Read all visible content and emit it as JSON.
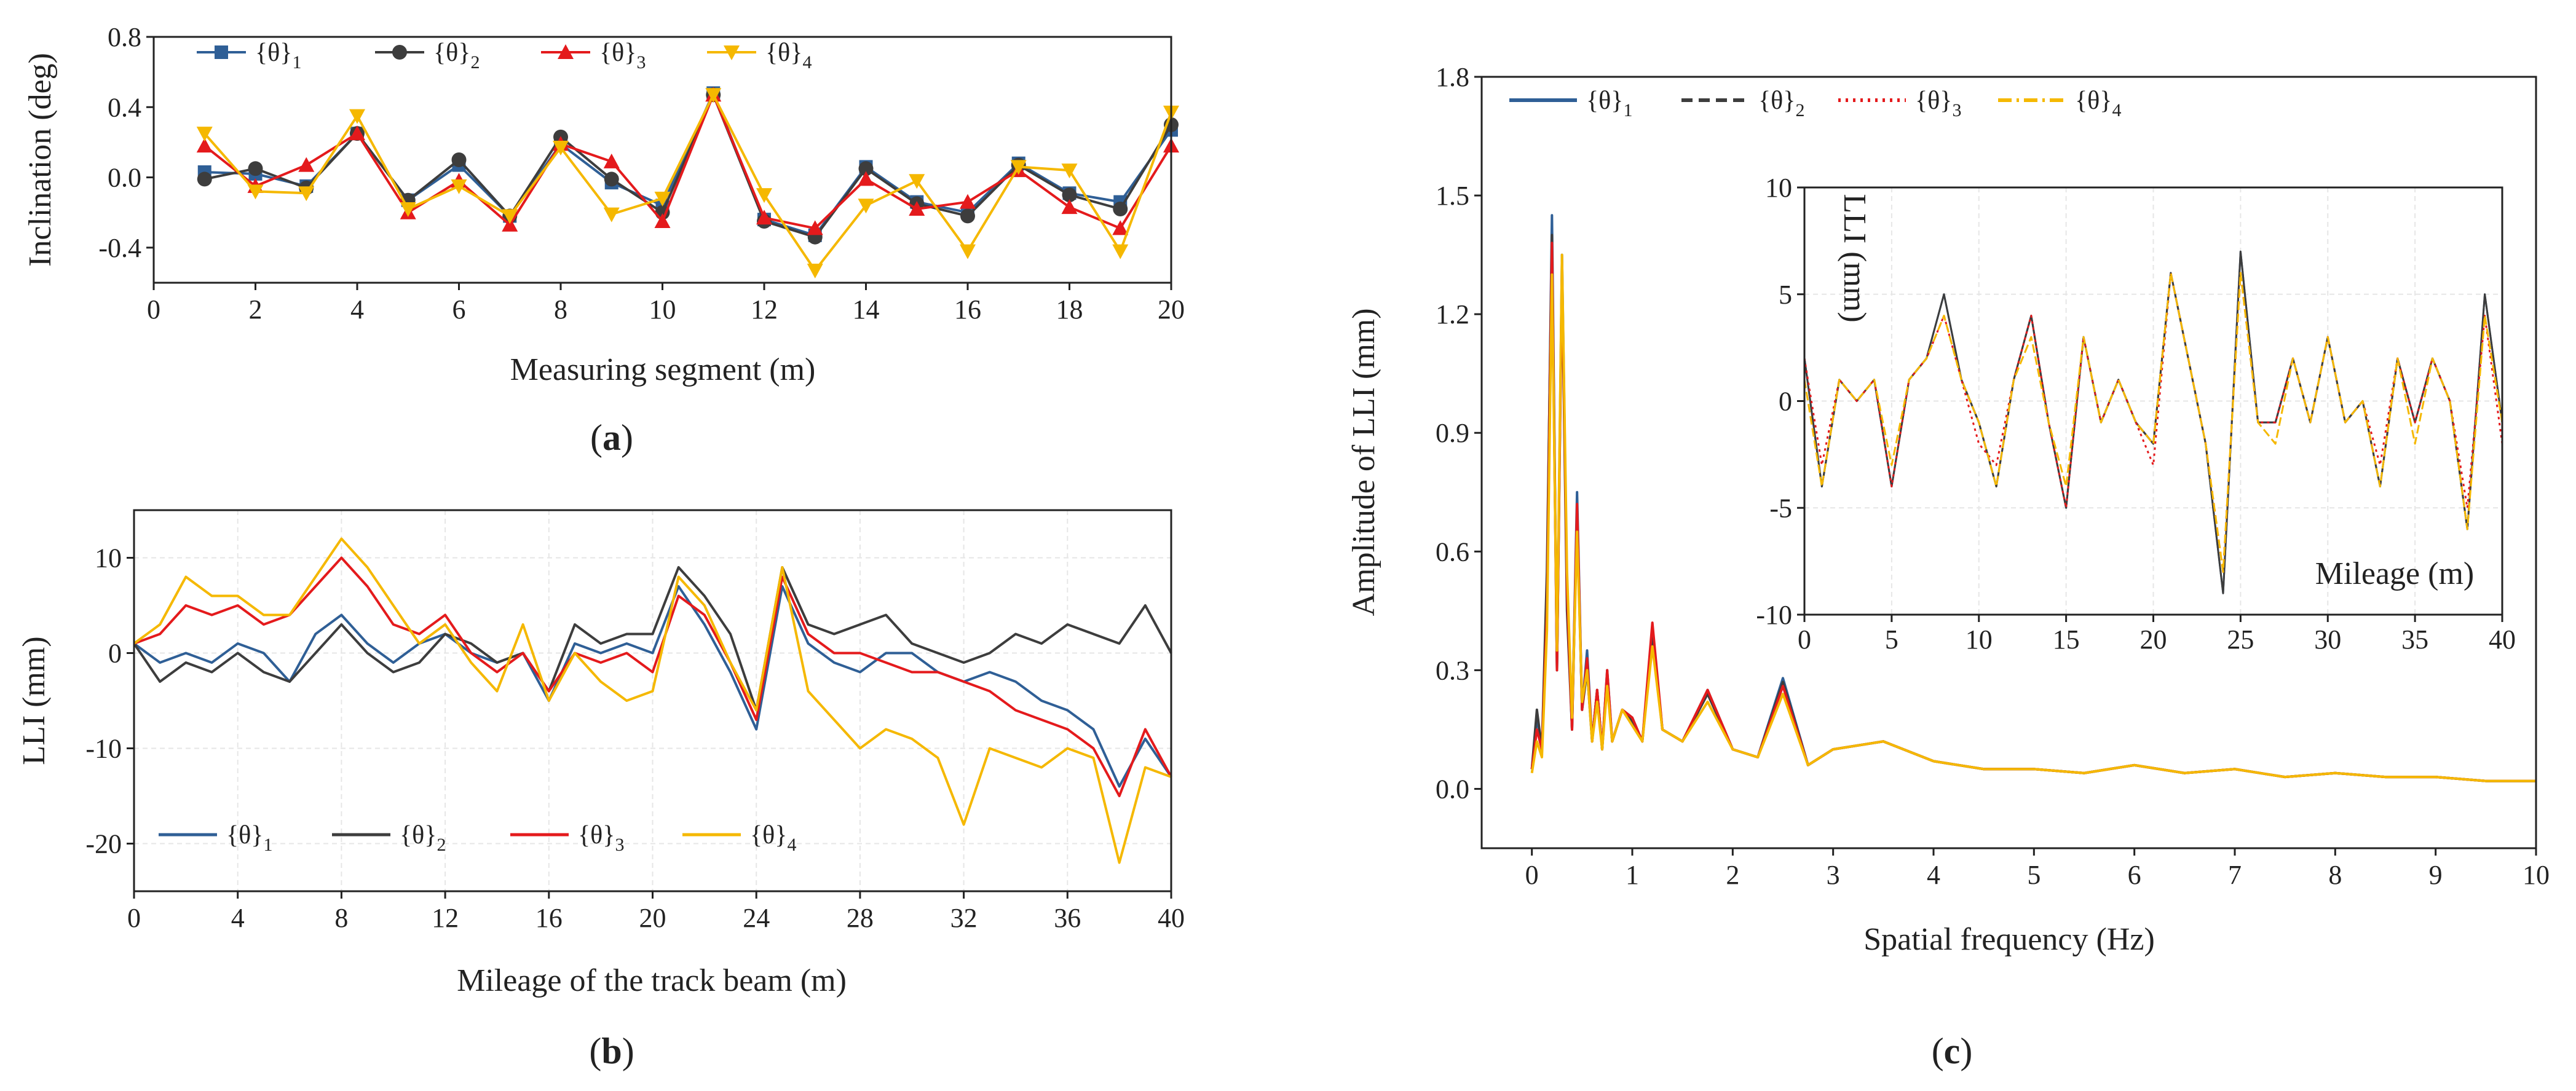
{
  "figure": {
    "panels": [
      {
        "label": "(a)",
        "bold": "a"
      },
      {
        "label": "(b)",
        "bold": "b"
      },
      {
        "label": "(c)",
        "bold": "c"
      }
    ]
  },
  "colors": {
    "theta1": "#2f5f96",
    "theta2": "#3d3d3d",
    "theta3": "#e41a1c",
    "theta4": "#f5b800"
  },
  "chart_data": [
    {
      "id": "a",
      "type": "line",
      "xlabel": "Measuring segment (m)",
      "ylabel": "Inclination (deg)",
      "xlim": [
        0,
        20
      ],
      "ylim": [
        -0.6,
        0.8
      ],
      "xticks": [
        "0",
        "2",
        "4",
        "6",
        "8",
        "10",
        "12",
        "14",
        "16",
        "18",
        "20"
      ],
      "yticks": [
        "0.8",
        "0.4",
        "0.0",
        "-0.4"
      ],
      "x": [
        1,
        2,
        3,
        4,
        5,
        6,
        7,
        8,
        9,
        10,
        11,
        12,
        13,
        14,
        15,
        16,
        17,
        18,
        19,
        20
      ],
      "series": [
        {
          "name": "{θ}1",
          "marker": "square",
          "values": [
            0.03,
            0.02,
            -0.05,
            0.25,
            -0.13,
            0.07,
            -0.22,
            0.19,
            -0.03,
            -0.16,
            0.48,
            -0.24,
            -0.33,
            0.06,
            -0.14,
            -0.2,
            0.08,
            -0.09,
            -0.14,
            0.27
          ]
        },
        {
          "name": "{θ}2",
          "marker": "circle",
          "values": [
            -0.01,
            0.05,
            -0.06,
            0.25,
            -0.13,
            0.1,
            -0.22,
            0.23,
            -0.01,
            -0.2,
            0.47,
            -0.25,
            -0.34,
            0.05,
            -0.15,
            -0.22,
            0.07,
            -0.1,
            -0.18,
            0.3
          ]
        },
        {
          "name": "{θ}3",
          "marker": "triangle-up",
          "values": [
            0.18,
            -0.05,
            0.07,
            0.25,
            -0.2,
            -0.02,
            -0.27,
            0.19,
            0.09,
            -0.25,
            0.47,
            -0.23,
            -0.29,
            -0.01,
            -0.18,
            -0.14,
            0.04,
            -0.17,
            -0.29,
            0.18
          ]
        },
        {
          "name": "{θ}4",
          "marker": "triangle-down",
          "values": [
            0.25,
            -0.08,
            -0.09,
            0.35,
            -0.18,
            -0.05,
            -0.22,
            0.17,
            -0.21,
            -0.12,
            0.47,
            -0.1,
            -0.53,
            -0.16,
            -0.02,
            -0.42,
            0.06,
            0.04,
            -0.42,
            0.37
          ]
        }
      ]
    },
    {
      "id": "b",
      "type": "line",
      "xlabel": "Mileage of the track beam (m)",
      "ylabel": "LLI (mm)",
      "xlim": [
        0,
        40
      ],
      "ylim": [
        -25,
        15
      ],
      "xticks": [
        "0",
        "4",
        "8",
        "12",
        "16",
        "20",
        "24",
        "28",
        "32",
        "36",
        "40"
      ],
      "yticks": [
        "10",
        "0",
        "-10",
        "-20"
      ],
      "x": [
        0,
        1,
        2,
        3,
        4,
        5,
        6,
        7,
        8,
        9,
        10,
        11,
        12,
        13,
        14,
        15,
        16,
        17,
        18,
        19,
        20,
        21,
        22,
        23,
        24,
        25,
        26,
        27,
        28,
        29,
        30,
        31,
        32,
        33,
        34,
        35,
        36,
        37,
        38,
        39,
        40
      ],
      "series": [
        {
          "name": "{θ}1",
          "values": [
            1,
            -1,
            0,
            -1,
            1,
            0,
            -3,
            2,
            4,
            1,
            -1,
            1,
            2,
            0,
            -1,
            0,
            -5,
            1,
            0,
            1,
            0,
            7,
            3,
            -2,
            -8,
            7,
            1,
            -1,
            -2,
            0,
            0,
            -2,
            -3,
            -2,
            -3,
            -5,
            -6,
            -8,
            -14,
            -9,
            -13
          ]
        },
        {
          "name": "{θ}2",
          "values": [
            1,
            -3,
            -1,
            -2,
            0,
            -2,
            -3,
            0,
            3,
            0,
            -2,
            -1,
            2,
            1,
            -1,
            0,
            -4,
            3,
            1,
            2,
            2,
            9,
            6,
            2,
            -6,
            9,
            3,
            2,
            3,
            4,
            1,
            0,
            -1,
            0,
            2,
            1,
            3,
            2,
            1,
            5,
            0
          ]
        },
        {
          "name": "{θ}3",
          "values": [
            1,
            2,
            5,
            4,
            5,
            3,
            4,
            7,
            10,
            7,
            3,
            2,
            4,
            0,
            -2,
            0,
            -4,
            0,
            -1,
            0,
            -2,
            6,
            4,
            -1,
            -7,
            8,
            2,
            0,
            0,
            -1,
            -2,
            -2,
            -3,
            -4,
            -6,
            -7,
            -8,
            -10,
            -15,
            -8,
            -13
          ]
        },
        {
          "name": "{θ}4",
          "values": [
            1,
            3,
            8,
            6,
            6,
            4,
            4,
            8,
            12,
            9,
            5,
            1,
            3,
            -1,
            -4,
            3,
            -5,
            0,
            -3,
            -5,
            -4,
            8,
            5,
            -1,
            -6,
            9,
            -4,
            -7,
            -10,
            -8,
            -9,
            -11,
            -18,
            -10,
            -11,
            -12,
            -10,
            -11,
            -22,
            -12,
            -13
          ]
        }
      ]
    },
    {
      "id": "c",
      "type": "line",
      "xlabel": "Spatial frequency (Hz)",
      "ylabel": "Amplitude of LLI (mm)",
      "xlim": [
        -0.5,
        10
      ],
      "ylim": [
        -0.15,
        1.8
      ],
      "xticks": [
        "0",
        "1",
        "2",
        "3",
        "4",
        "5",
        "6",
        "7",
        "8",
        "9",
        "10"
      ],
      "yticks": [
        "0.0",
        "0.3",
        "0.6",
        "0.9",
        "1.2",
        "1.5",
        "1.8"
      ],
      "x": [
        0,
        0.05,
        0.1,
        0.15,
        0.2,
        0.25,
        0.3,
        0.35,
        0.4,
        0.45,
        0.5,
        0.55,
        0.6,
        0.65,
        0.7,
        0.75,
        0.8,
        0.9,
        1.0,
        1.1,
        1.2,
        1.3,
        1.5,
        1.75,
        2.0,
        2.25,
        2.5,
        2.75,
        3.0,
        3.5,
        4.0,
        4.5,
        5.0,
        5.5,
        6.0,
        6.5,
        7.0,
        7.5,
        8.0,
        8.5,
        9.0,
        9.5,
        10.0
      ],
      "series": [
        {
          "name": "{θ}1",
          "values": [
            0.05,
            0.18,
            0.1,
            0.5,
            1.45,
            0.3,
            1.35,
            0.5,
            0.15,
            0.75,
            0.2,
            0.35,
            0.12,
            0.25,
            0.1,
            0.3,
            0.12,
            0.2,
            0.18,
            0.12,
            0.4,
            0.15,
            0.12,
            0.25,
            0.1,
            0.08,
            0.28,
            0.06,
            0.1,
            0.12,
            0.07,
            0.05,
            0.05,
            0.04,
            0.06,
            0.04,
            0.05,
            0.03,
            0.04,
            0.03,
            0.03,
            0.02,
            0.02
          ]
        },
        {
          "name": "{θ}2",
          "values": [
            0.05,
            0.2,
            0.1,
            0.55,
            1.4,
            0.3,
            1.3,
            0.45,
            0.15,
            0.7,
            0.2,
            0.3,
            0.12,
            0.25,
            0.1,
            0.28,
            0.12,
            0.2,
            0.17,
            0.12,
            0.38,
            0.15,
            0.12,
            0.24,
            0.1,
            0.08,
            0.27,
            0.06,
            0.1,
            0.12,
            0.07,
            0.05,
            0.05,
            0.04,
            0.06,
            0.04,
            0.05,
            0.03,
            0.04,
            0.03,
            0.03,
            0.02,
            0.02
          ]
        },
        {
          "name": "{θ}3",
          "values": [
            0.05,
            0.15,
            0.1,
            0.45,
            1.38,
            0.3,
            1.32,
            0.5,
            0.15,
            0.72,
            0.2,
            0.33,
            0.12,
            0.25,
            0.1,
            0.3,
            0.12,
            0.2,
            0.18,
            0.12,
            0.42,
            0.15,
            0.12,
            0.25,
            0.1,
            0.08,
            0.26,
            0.06,
            0.1,
            0.12,
            0.07,
            0.05,
            0.05,
            0.04,
            0.06,
            0.04,
            0.05,
            0.03,
            0.04,
            0.03,
            0.03,
            0.02,
            0.02
          ]
        },
        {
          "name": "{θ}4",
          "values": [
            0.04,
            0.12,
            0.08,
            0.4,
            1.3,
            0.35,
            1.35,
            0.55,
            0.18,
            0.65,
            0.22,
            0.3,
            0.12,
            0.22,
            0.1,
            0.26,
            0.12,
            0.2,
            0.16,
            0.12,
            0.36,
            0.15,
            0.12,
            0.22,
            0.1,
            0.08,
            0.24,
            0.06,
            0.1,
            0.12,
            0.07,
            0.05,
            0.05,
            0.04,
            0.06,
            0.04,
            0.05,
            0.03,
            0.04,
            0.03,
            0.03,
            0.02,
            0.02
          ]
        }
      ],
      "inset": {
        "type": "line",
        "xlabel": "Mileage (m)",
        "ylabel": "LLI (mm)",
        "xlim": [
          0,
          40
        ],
        "ylim": [
          -10,
          10
        ],
        "xticks": [
          "0",
          "5",
          "10",
          "15",
          "20",
          "25",
          "30",
          "35",
          "40"
        ],
        "yticks": [
          "10",
          "5",
          "0",
          "-5",
          "-10"
        ],
        "x": [
          0,
          1,
          2,
          3,
          4,
          5,
          6,
          7,
          8,
          9,
          10,
          11,
          12,
          13,
          14,
          15,
          16,
          17,
          18,
          19,
          20,
          21,
          22,
          23,
          24,
          25,
          26,
          27,
          28,
          29,
          30,
          31,
          32,
          33,
          34,
          35,
          36,
          37,
          38,
          39,
          40
        ],
        "series": [
          {
            "name": "{θ}1",
            "values": [
              2,
              -4,
              1,
              0,
              1,
              -4,
              1,
              2,
              5,
              1,
              -1,
              -4,
              1,
              4,
              -1,
              -5,
              3,
              -1,
              1,
              -1,
              -2,
              6,
              2,
              -2,
              -9,
              7,
              -1,
              -1,
              2,
              -1,
              3,
              -1,
              0,
              -4,
              2,
              -1,
              2,
              0,
              -6,
              5,
              -1
            ]
          },
          {
            "name": "{θ}2",
            "values": [
              2,
              -4,
              1,
              0,
              1,
              -4,
              1,
              2,
              5,
              1,
              -1,
              -4,
              1,
              4,
              -1,
              -5,
              3,
              -1,
              1,
              -1,
              -2,
              6,
              2,
              -2,
              -9,
              7,
              -1,
              -1,
              2,
              -1,
              3,
              -1,
              0,
              -4,
              2,
              -1,
              2,
              0,
              -6,
              5,
              -1
            ]
          },
          {
            "name": "{θ}3",
            "values": [
              2,
              -3,
              1,
              0,
              1,
              -4,
              1,
              2,
              4,
              1,
              -2,
              -3,
              1,
              4,
              -1,
              -5,
              3,
              -1,
              1,
              -1,
              -3,
              6,
              2,
              -2,
              -8,
              6,
              -1,
              -1,
              2,
              -1,
              3,
              -1,
              0,
              -3,
              2,
              -1,
              2,
              0,
              -5,
              4,
              -2
            ]
          },
          {
            "name": "{θ}4",
            "values": [
              1,
              -4,
              1,
              0,
              1,
              -3,
              1,
              2,
              4,
              1,
              -1,
              -4,
              1,
              3,
              -1,
              -4,
              3,
              -1,
              1,
              -1,
              -2,
              6,
              2,
              -2,
              -8,
              6,
              -1,
              -2,
              2,
              -1,
              3,
              -1,
              0,
              -4,
              2,
              -2,
              2,
              0,
              -6,
              4,
              -1
            ]
          }
        ]
      }
    }
  ]
}
